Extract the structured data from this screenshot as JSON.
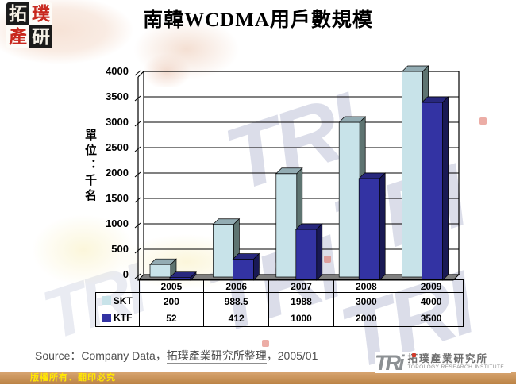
{
  "header": {
    "stamp": {
      "chars": [
        "拓",
        "璞",
        "產",
        "研"
      ]
    }
  },
  "chart_data": {
    "type": "bar",
    "style": "3d-column",
    "title": "南韓WCDMA用戶數規模",
    "categories": [
      "2005",
      "2006",
      "2007",
      "2008",
      "2009"
    ],
    "series": [
      {
        "name": "SKT",
        "values": [
          200,
          988.5,
          1988,
          3000,
          4000
        ],
        "color": "#C8E3E9",
        "color_top": "#93ACB3",
        "color_side": "#5E7471"
      },
      {
        "name": "KTF",
        "values": [
          52,
          412,
          1000,
          2000,
          3500
        ],
        "color": "#3333A3",
        "color_top": "#28287E",
        "color_side": "#191954"
      }
    ],
    "xlabel": "",
    "ylabel": "單位：千名",
    "ylim": [
      0,
      4000
    ],
    "ytick_step": 500,
    "grid": true,
    "legend_position": "table-left"
  },
  "source": {
    "prefix": "Source：Company Data，",
    "underlined": "拓璞產業研究所整理",
    "suffix": "，2005/01"
  },
  "footer": {
    "copyright": "版權所有．翻印必究",
    "logo_tri": "TRi",
    "logo_cn": "拓璞產業研究所",
    "logo_en": "TOPOLOGY RESEARCH INSTITUTE"
  },
  "watermark": {
    "text": "TRI"
  },
  "colors": {
    "floor": "#7F7F7F",
    "grid": "#000000",
    "footer_bar": "#C9935F",
    "copyright_text": "#FFE604",
    "stamp_red": "#C8281E",
    "stamp_black": "#1A1A1A",
    "logo_gray": "#8D9194",
    "watermark": "#DBDDE9"
  }
}
